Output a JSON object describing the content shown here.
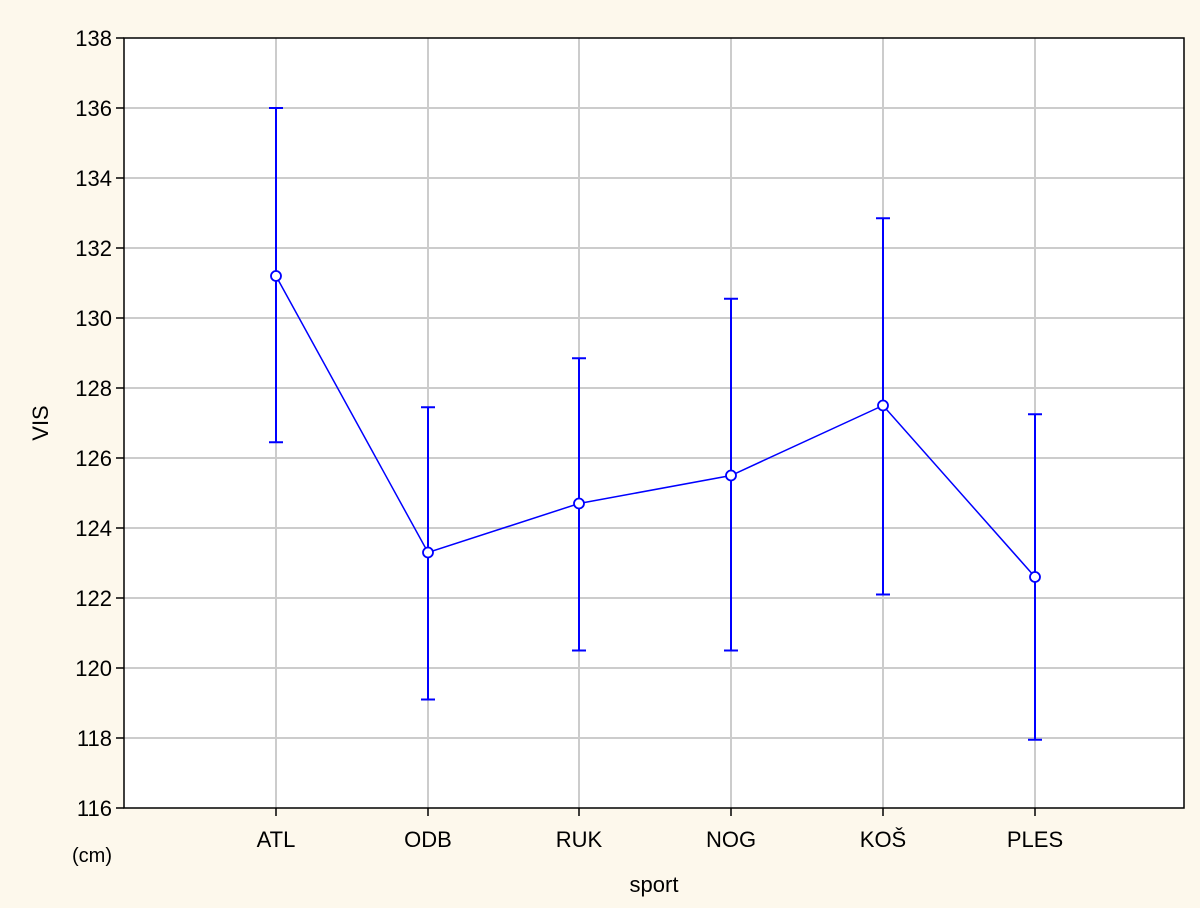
{
  "chart_data": {
    "type": "line",
    "categories": [
      "ATL",
      "ODB",
      "RUK",
      "NOG",
      "KOŠ",
      "PLES"
    ],
    "series": [
      {
        "values": [
          131.2,
          123.3,
          124.7,
          125.5,
          127.5,
          122.6
        ],
        "lower": [
          126.45,
          119.1,
          120.5,
          120.5,
          122.1,
          117.95
        ],
        "upper": [
          136.0,
          127.45,
          128.85,
          130.55,
          132.85,
          127.25
        ]
      }
    ],
    "xlabel": "sport",
    "ylabel": "VIS",
    "unit_label": "(cm)",
    "ylim": [
      116,
      138
    ],
    "yticks": [
      116,
      118,
      120,
      122,
      124,
      126,
      128,
      130,
      132,
      134,
      136,
      138
    ],
    "grid": true,
    "colors": {
      "series": "#0000ff",
      "grid": "#cccccc",
      "axis": "#000000",
      "plot_bg": "#ffffff",
      "page_bg": "#fdf8ec"
    }
  }
}
